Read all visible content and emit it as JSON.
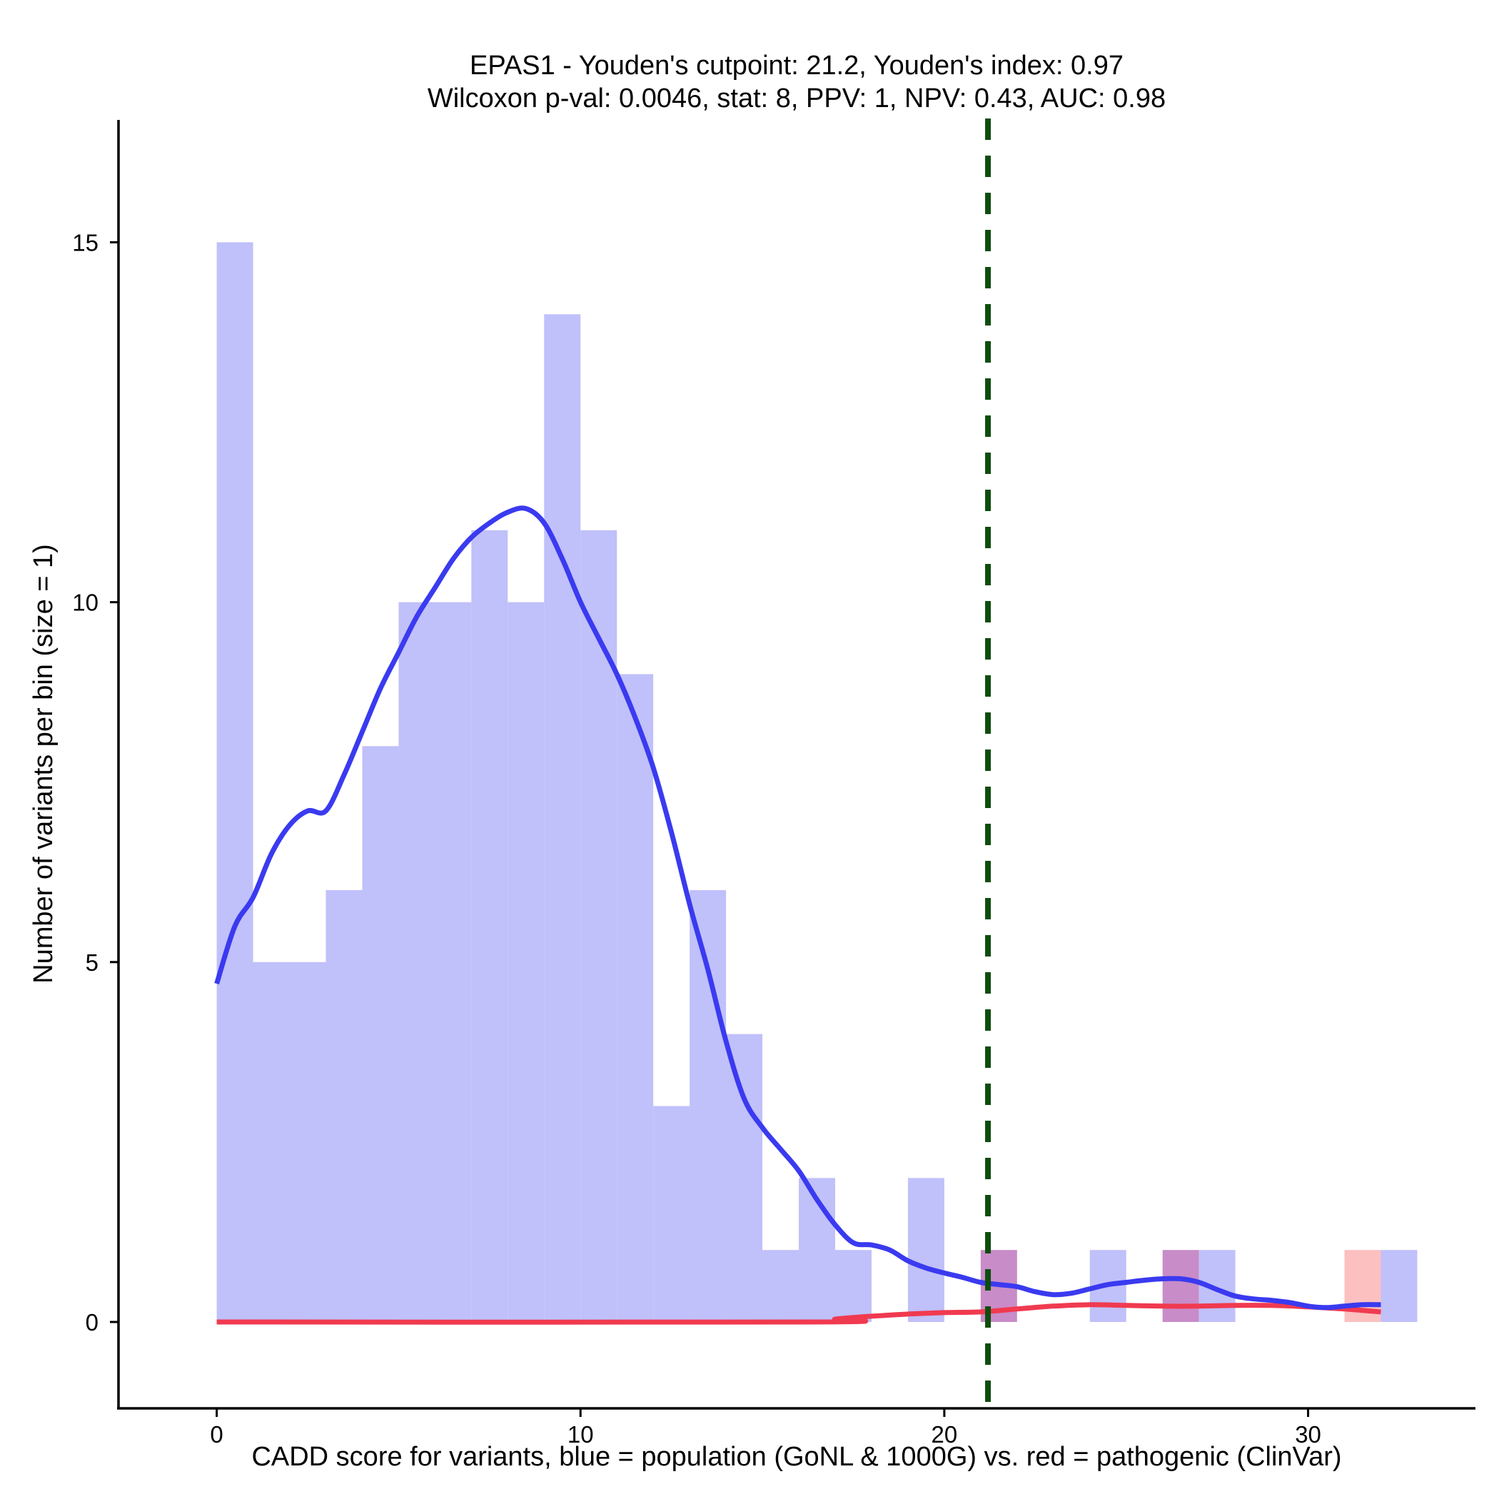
{
  "chart_data": {
    "type": "bar",
    "title_line1": "EPAS1 - Youden's cutpoint: 21.2, Youden's index: 0.97",
    "title_line2": "Wilcoxon p-val: 0.0046, stat: 8, PPV: 1, NPV: 0.43, AUC: 0.98",
    "xlabel": "CADD score for variants, blue = population (GoNL & 1000G) vs. red = pathogenic (ClinVar)",
    "ylabel": "Number of variants per bin (size = 1)",
    "xlim": [
      -2.7,
      34.6
    ],
    "ylim": [
      -1.2,
      16.7
    ],
    "x_ticks": [
      0,
      10,
      20,
      30
    ],
    "y_ticks": [
      0,
      5,
      10,
      15
    ],
    "bin_size": 1,
    "cutpoint": 21.2,
    "colors": {
      "population_bar": "#c0c0fa",
      "pathogenic_bar": "#fcc0c0",
      "overlap_bar": "#c88cc8",
      "population_line": "#3a3af0",
      "pathogenic_line": "#f03a50",
      "cutpoint_line": "#0d4d0d"
    },
    "series": [
      {
        "name": "population (GoNL & 1000G)",
        "bins": [
          {
            "start": 0,
            "count": 15
          },
          {
            "start": 1,
            "count": 5
          },
          {
            "start": 2,
            "count": 5
          },
          {
            "start": 3,
            "count": 6
          },
          {
            "start": 4,
            "count": 8
          },
          {
            "start": 5,
            "count": 10
          },
          {
            "start": 6,
            "count": 10
          },
          {
            "start": 7,
            "count": 11
          },
          {
            "start": 8,
            "count": 10
          },
          {
            "start": 9,
            "count": 14
          },
          {
            "start": 10,
            "count": 11
          },
          {
            "start": 11,
            "count": 9
          },
          {
            "start": 12,
            "count": 3
          },
          {
            "start": 13,
            "count": 6
          },
          {
            "start": 14,
            "count": 4
          },
          {
            "start": 15,
            "count": 1
          },
          {
            "start": 16,
            "count": 2
          },
          {
            "start": 17,
            "count": 1
          },
          {
            "start": 19,
            "count": 2
          },
          {
            "start": 21,
            "count": 1
          },
          {
            "start": 24,
            "count": 1
          },
          {
            "start": 26,
            "count": 1
          },
          {
            "start": 27,
            "count": 1
          },
          {
            "start": 32,
            "count": 1
          }
        ],
        "density": [
          [
            0,
            4.7
          ],
          [
            0.5,
            5.5
          ],
          [
            1,
            5.9
          ],
          [
            1.5,
            6.5
          ],
          [
            2,
            6.9
          ],
          [
            2.5,
            7.1
          ],
          [
            3,
            7.1
          ],
          [
            3.5,
            7.6
          ],
          [
            4,
            8.2
          ],
          [
            4.5,
            8.8
          ],
          [
            5,
            9.3
          ],
          [
            5.5,
            9.8
          ],
          [
            6,
            10.2
          ],
          [
            6.5,
            10.6
          ],
          [
            7,
            10.9
          ],
          [
            7.5,
            11.1
          ],
          [
            8,
            11.25
          ],
          [
            8.5,
            11.3
          ],
          [
            9,
            11.1
          ],
          [
            9.5,
            10.6
          ],
          [
            10,
            10.0
          ],
          [
            10.5,
            9.5
          ],
          [
            11,
            9.0
          ],
          [
            11.5,
            8.4
          ],
          [
            12,
            7.7
          ],
          [
            12.5,
            6.8
          ],
          [
            13,
            5.8
          ],
          [
            13.5,
            4.9
          ],
          [
            14,
            3.9
          ],
          [
            14.5,
            3.1
          ],
          [
            15,
            2.7
          ],
          [
            15.5,
            2.4
          ],
          [
            16,
            2.1
          ],
          [
            16.5,
            1.7
          ],
          [
            17,
            1.35
          ],
          [
            17.5,
            1.1
          ],
          [
            18,
            1.07
          ],
          [
            18.5,
            1.0
          ],
          [
            19,
            0.85
          ],
          [
            19.5,
            0.75
          ],
          [
            20,
            0.68
          ],
          [
            20.5,
            0.62
          ],
          [
            21,
            0.55
          ],
          [
            21.5,
            0.52
          ],
          [
            22,
            0.49
          ],
          [
            22.5,
            0.42
          ],
          [
            23,
            0.38
          ],
          [
            23.5,
            0.4
          ],
          [
            24,
            0.46
          ],
          [
            24.5,
            0.52
          ],
          [
            25,
            0.55
          ],
          [
            25.5,
            0.58
          ],
          [
            26,
            0.6
          ],
          [
            26.5,
            0.6
          ],
          [
            27,
            0.55
          ],
          [
            27.5,
            0.45
          ],
          [
            28,
            0.36
          ],
          [
            28.5,
            0.32
          ],
          [
            29,
            0.3
          ],
          [
            29.5,
            0.27
          ],
          [
            30,
            0.22
          ],
          [
            30.5,
            0.2
          ],
          [
            31,
            0.22
          ],
          [
            31.5,
            0.24
          ],
          [
            32,
            0.24
          ]
        ]
      },
      {
        "name": "pathogenic (ClinVar)",
        "bins": [
          {
            "start": 21,
            "count": 1
          },
          {
            "start": 26,
            "count": 1
          },
          {
            "start": 31,
            "count": 1
          }
        ],
        "density": [
          [
            0,
            0
          ],
          [
            16.5,
            0
          ],
          [
            17,
            0.04
          ],
          [
            18,
            0.08
          ],
          [
            19,
            0.11
          ],
          [
            20,
            0.13
          ],
          [
            21,
            0.14
          ],
          [
            22,
            0.18
          ],
          [
            23,
            0.22
          ],
          [
            24,
            0.24
          ],
          [
            25,
            0.23
          ],
          [
            26,
            0.22
          ],
          [
            27,
            0.22
          ],
          [
            28,
            0.23
          ],
          [
            29,
            0.23
          ],
          [
            30,
            0.21
          ],
          [
            31,
            0.18
          ],
          [
            32,
            0.14
          ]
        ]
      }
    ]
  }
}
